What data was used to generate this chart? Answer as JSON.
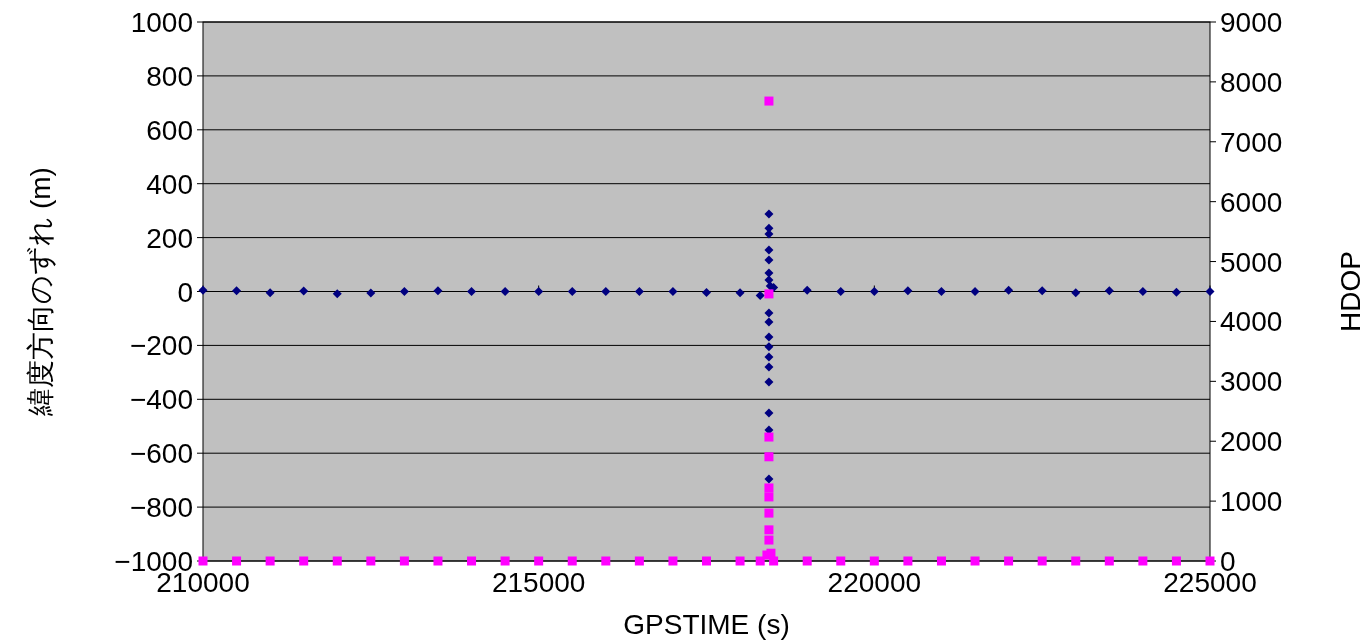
{
  "chart_data": {
    "type": "scatter",
    "xlabel": "GPSTIME (s)",
    "ylabel": "緯度方向のずれ (m)",
    "y2label": "HDOP",
    "xlim": [
      210000,
      225000
    ],
    "xticks": [
      210000,
      215000,
      220000,
      225000
    ],
    "ylim": [
      -1000,
      1000
    ],
    "yticks": [
      -1000,
      -800,
      -600,
      -400,
      -200,
      0,
      200,
      400,
      600,
      800,
      1000
    ],
    "y2lim": [
      0,
      9000
    ],
    "y2ticks": [
      0,
      1000,
      2000,
      3000,
      4000,
      5000,
      6000,
      7000,
      8000,
      9000
    ],
    "grid": "y",
    "series": [
      {
        "color": "#000080",
        "marker": "diamond",
        "x": [
          210000,
          210500,
          211000,
          211500,
          212000,
          212500,
          213000,
          213500,
          214000,
          214500,
          215000,
          215500,
          216000,
          216500,
          217000,
          217500,
          218000,
          218300,
          218430,
          218430,
          218430,
          218430,
          218430,
          218430,
          218430,
          218430,
          218430,
          218430,
          218430,
          218430,
          218430,
          218430,
          218430,
          218430,
          218430,
          218450,
          218500,
          219000,
          219500,
          220000,
          220500,
          221000,
          221500,
          222000,
          222500,
          223000,
          223500,
          224000,
          224500,
          225000
        ],
        "values": [
          5,
          3,
          -5,
          2,
          -8,
          -6,
          0,
          3,
          0,
          0,
          0,
          0,
          0,
          0,
          0,
          -4,
          -5,
          -15,
          288,
          235,
          213,
          154,
          117,
          69,
          43,
          -80,
          -113,
          -169,
          -205,
          -243,
          -280,
          -336,
          -451,
          -514,
          -696,
          20,
          15,
          5,
          0,
          0,
          3,
          0,
          0,
          5,
          3,
          -5,
          3,
          0,
          -3,
          0
        ]
      },
      {
        "color": "#ff00ff",
        "marker": "square",
        "axis": "y2",
        "x": [
          210000,
          210500,
          211000,
          211500,
          212000,
          212500,
          213000,
          213500,
          214000,
          214500,
          215000,
          215500,
          216000,
          216500,
          217000,
          217500,
          218000,
          218300,
          218400,
          218430,
          218430,
          218430,
          218430,
          218430,
          218430,
          218430,
          218430,
          218430,
          218460,
          218500,
          219000,
          219500,
          220000,
          220500,
          221000,
          221500,
          222000,
          222500,
          223000,
          223500,
          224000,
          224500,
          225000
        ],
        "values": [
          0,
          0,
          0,
          0,
          0,
          0,
          0,
          0,
          0,
          0,
          0,
          0,
          0,
          0,
          0,
          0,
          0,
          0,
          100,
          7680,
          4460,
          2070,
          1740,
          1220,
          1070,
          800,
          520,
          350,
          130,
          0,
          0,
          0,
          0,
          0,
          0,
          0,
          0,
          0,
          0,
          0,
          0,
          0,
          0
        ]
      }
    ]
  }
}
